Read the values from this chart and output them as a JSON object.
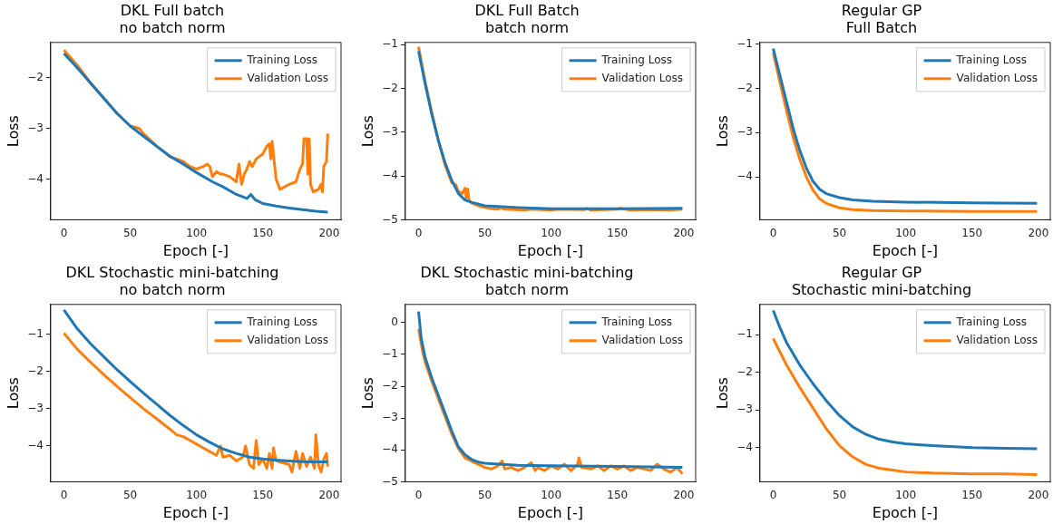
{
  "chart_data": [
    {
      "type": "line",
      "title": "DKL Full batch\nno batch norm",
      "xlabel": "Epoch [-]",
      "ylabel": "Loss",
      "xlim": [
        -10,
        209
      ],
      "ylim": [
        -4.8,
        -1.3
      ],
      "xticks": [
        0,
        50,
        100,
        150,
        200
      ],
      "yticks": [
        -4,
        -3,
        -2
      ],
      "legend": "top right",
      "series": [
        {
          "name": "Training Loss",
          "color": "#1f77b4",
          "x": [
            0,
            10,
            20,
            30,
            40,
            50,
            60,
            70,
            80,
            90,
            100,
            110,
            112,
            120,
            130,
            138,
            141,
            144,
            150,
            160,
            170,
            180,
            190,
            199
          ],
          "values": [
            -1.52,
            -1.8,
            -2.1,
            -2.4,
            -2.7,
            -2.95,
            -3.15,
            -3.35,
            -3.55,
            -3.7,
            -3.87,
            -4.02,
            -4.05,
            -4.15,
            -4.3,
            -4.38,
            -4.3,
            -4.4,
            -4.48,
            -4.53,
            -4.57,
            -4.6,
            -4.63,
            -4.65
          ]
        },
        {
          "name": "Validation Loss",
          "color": "#ff7f0e",
          "x": [
            0,
            10,
            20,
            30,
            40,
            50,
            57,
            60,
            70,
            80,
            85,
            90,
            95,
            100,
            105,
            108,
            110,
            112,
            115,
            118,
            120,
            125,
            130,
            132,
            134,
            136,
            138,
            140,
            142,
            145,
            150,
            153,
            155,
            156,
            157,
            160,
            163,
            170,
            175,
            178,
            180,
            181,
            183,
            184,
            185,
            186,
            188,
            192,
            194,
            195,
            196,
            198,
            199
          ],
          "values": [
            -1.45,
            -1.75,
            -2.1,
            -2.4,
            -2.7,
            -2.95,
            -3.0,
            -3.1,
            -3.35,
            -3.55,
            -3.6,
            -3.65,
            -3.75,
            -3.8,
            -3.75,
            -3.7,
            -3.75,
            -3.95,
            -3.85,
            -3.9,
            -3.9,
            -3.95,
            -4.05,
            -3.7,
            -4.1,
            -3.9,
            -3.8,
            -3.65,
            -3.75,
            -3.6,
            -3.5,
            -3.35,
            -3.3,
            -3.6,
            -3.25,
            -4.0,
            -4.2,
            -4.1,
            -4.05,
            -3.8,
            -3.7,
            -3.2,
            -3.2,
            -3.9,
            -3.2,
            -4.1,
            -4.25,
            -4.2,
            -4.1,
            -4.25,
            -3.75,
            -3.65,
            -3.1
          ]
        }
      ]
    },
    {
      "type": "line",
      "title": "DKL Full Batch\nbatch norm",
      "xlabel": "Epoch [-]",
      "ylabel": "Loss",
      "xlim": [
        -10,
        209
      ],
      "ylim": [
        -5,
        -0.95
      ],
      "xticks": [
        0,
        50,
        100,
        150,
        200
      ],
      "yticks": [
        -5,
        -4,
        -3,
        -2,
        -1
      ],
      "legend": "top right",
      "series": [
        {
          "name": "Training Loss",
          "color": "#1f77b4",
          "x": [
            0,
            5,
            10,
            15,
            20,
            25,
            30,
            35,
            40,
            50,
            75,
            100,
            150,
            199
          ],
          "values": [
            -1.15,
            -1.9,
            -2.6,
            -3.2,
            -3.7,
            -4.1,
            -4.4,
            -4.55,
            -4.6,
            -4.68,
            -4.72,
            -4.75,
            -4.75,
            -4.74
          ]
        },
        {
          "name": "Validation Loss",
          "color": "#ff7f0e",
          "x": [
            0,
            5,
            10,
            15,
            20,
            25,
            28,
            30,
            33,
            35,
            36,
            37,
            38,
            40,
            45,
            50,
            55,
            60,
            62,
            65,
            80,
            85,
            100,
            105,
            125,
            127,
            130,
            150,
            152,
            160,
            175,
            190,
            199
          ],
          "values": [
            -1.05,
            -1.85,
            -2.55,
            -3.2,
            -3.75,
            -4.15,
            -4.2,
            -4.35,
            -4.4,
            -4.28,
            -4.5,
            -4.3,
            -4.55,
            -4.62,
            -4.68,
            -4.72,
            -4.75,
            -4.76,
            -4.72,
            -4.76,
            -4.78,
            -4.76,
            -4.78,
            -4.76,
            -4.77,
            -4.74,
            -4.78,
            -4.76,
            -4.74,
            -4.78,
            -4.77,
            -4.78,
            -4.76
          ]
        }
      ]
    },
    {
      "type": "line",
      "title": "Regular GP\nFull Batch",
      "xlabel": "Epoch [-]",
      "ylabel": "Loss",
      "xlim": [
        -10,
        209
      ],
      "ylim": [
        -4.97,
        -0.96
      ],
      "xticks": [
        0,
        50,
        100,
        150,
        200
      ],
      "yticks": [
        -4,
        -3,
        -2,
        -1
      ],
      "legend": "top right",
      "series": [
        {
          "name": "Training Loss",
          "color": "#1f77b4",
          "x": [
            0,
            5,
            10,
            15,
            20,
            25,
            30,
            35,
            40,
            50,
            60,
            75,
            100,
            150,
            199
          ],
          "values": [
            -1.1,
            -1.7,
            -2.3,
            -2.9,
            -3.4,
            -3.8,
            -4.1,
            -4.28,
            -4.38,
            -4.47,
            -4.52,
            -4.55,
            -4.57,
            -4.59,
            -4.6
          ]
        },
        {
          "name": "Validation Loss",
          "color": "#ff7f0e",
          "x": [
            0,
            5,
            10,
            15,
            20,
            25,
            30,
            35,
            40,
            50,
            60,
            75,
            100,
            150,
            199
          ],
          "values": [
            -1.2,
            -1.85,
            -2.5,
            -3.1,
            -3.6,
            -4.0,
            -4.3,
            -4.5,
            -4.6,
            -4.7,
            -4.74,
            -4.76,
            -4.77,
            -4.78,
            -4.78
          ]
        }
      ]
    },
    {
      "type": "line",
      "title": "DKL Stochastic mini-batching\nno batch norm",
      "xlabel": "Epoch [-]",
      "ylabel": "Loss",
      "xlim": [
        -10,
        209
      ],
      "ylim": [
        -4.96,
        -0.2
      ],
      "xticks": [
        0,
        50,
        100,
        150,
        200
      ],
      "yticks": [
        -4,
        -3,
        -2,
        -1
      ],
      "legend": "top right",
      "series": [
        {
          "name": "Training Loss",
          "color": "#1f77b4",
          "x": [
            0,
            10,
            20,
            30,
            40,
            50,
            60,
            70,
            80,
            90,
            100,
            110,
            120,
            130,
            140,
            150,
            160,
            170,
            180,
            199
          ],
          "values": [
            -0.35,
            -0.85,
            -1.25,
            -1.6,
            -1.95,
            -2.27,
            -2.58,
            -2.88,
            -3.18,
            -3.45,
            -3.7,
            -3.9,
            -4.08,
            -4.2,
            -4.3,
            -4.35,
            -4.38,
            -4.4,
            -4.42,
            -4.43
          ]
        },
        {
          "name": "Validation Loss",
          "color": "#ff7f0e",
          "x": [
            0,
            10,
            20,
            30,
            40,
            50,
            60,
            70,
            80,
            85,
            90,
            95,
            100,
            105,
            110,
            115,
            118,
            120,
            125,
            130,
            135,
            137,
            140,
            143,
            145,
            147,
            150,
            153,
            155,
            157,
            158,
            160,
            165,
            170,
            172,
            175,
            178,
            180,
            183,
            186,
            189,
            190,
            192,
            194,
            196,
            198,
            199
          ],
          "values": [
            -0.97,
            -1.4,
            -1.75,
            -2.08,
            -2.4,
            -2.7,
            -3.0,
            -3.27,
            -3.55,
            -3.7,
            -3.75,
            -3.85,
            -3.95,
            -4.05,
            -4.15,
            -4.25,
            -4.0,
            -4.3,
            -4.25,
            -4.4,
            -4.3,
            -4.0,
            -4.5,
            -4.6,
            -3.85,
            -4.5,
            -4.35,
            -4.6,
            -4.2,
            -4.6,
            -4.05,
            -4.4,
            -4.45,
            -4.5,
            -4.7,
            -4.15,
            -4.6,
            -4.2,
            -4.55,
            -4.3,
            -4.6,
            -3.7,
            -4.5,
            -4.7,
            -4.35,
            -4.2,
            -4.55
          ]
        }
      ]
    },
    {
      "type": "line",
      "title": "DKL Stochastic mini-batching\nbatch norm",
      "xlabel": "Epoch [-]",
      "ylabel": "Loss",
      "xlim": [
        -10,
        209
      ],
      "ylim": [
        -5,
        0.57
      ],
      "xticks": [
        0,
        50,
        100,
        150,
        200
      ],
      "yticks": [
        -5,
        -4,
        -3,
        -2,
        -1,
        0
      ],
      "legend": "top right",
      "series": [
        {
          "name": "Training Loss",
          "color": "#1f77b4",
          "x": [
            0,
            2,
            5,
            10,
            15,
            20,
            25,
            30,
            35,
            40,
            45,
            50,
            75,
            100,
            150,
            199
          ],
          "values": [
            0.35,
            -0.5,
            -1.1,
            -1.75,
            -2.3,
            -2.85,
            -3.4,
            -3.9,
            -4.15,
            -4.3,
            -4.38,
            -4.42,
            -4.48,
            -4.5,
            -4.52,
            -4.55
          ]
        },
        {
          "name": "Validation Loss",
          "color": "#ff7f0e",
          "x": [
            0,
            3,
            5,
            10,
            15,
            20,
            25,
            30,
            35,
            40,
            45,
            50,
            55,
            60,
            63,
            65,
            70,
            75,
            80,
            85,
            88,
            90,
            95,
            100,
            105,
            110,
            115,
            120,
            121,
            123,
            130,
            135,
            140,
            145,
            150,
            155,
            160,
            165,
            170,
            175,
            180,
            185,
            190,
            195,
            199
          ],
          "values": [
            -0.2,
            -0.9,
            -1.25,
            -1.85,
            -2.4,
            -2.95,
            -3.5,
            -3.95,
            -4.25,
            -4.35,
            -4.45,
            -4.55,
            -4.6,
            -4.5,
            -4.35,
            -4.6,
            -4.55,
            -4.65,
            -4.55,
            -4.4,
            -4.65,
            -4.55,
            -4.65,
            -4.5,
            -4.6,
            -4.45,
            -4.65,
            -4.45,
            -4.25,
            -4.55,
            -4.6,
            -4.5,
            -4.65,
            -4.5,
            -4.6,
            -4.5,
            -4.65,
            -4.55,
            -4.6,
            -4.65,
            -4.45,
            -4.6,
            -4.7,
            -4.55,
            -4.75
          ]
        }
      ]
    },
    {
      "type": "line",
      "title": "Regular GP\nStochastic mini-batching",
      "xlabel": "Epoch [-]",
      "ylabel": "Loss",
      "xlim": [
        -10,
        209
      ],
      "ylim": [
        -4.91,
        -0.19
      ],
      "xticks": [
        0,
        50,
        100,
        150,
        200
      ],
      "yticks": [
        -4,
        -3,
        -2,
        -1
      ],
      "legend": "top right",
      "series": [
        {
          "name": "Training Loss",
          "color": "#1f77b4",
          "x": [
            0,
            5,
            10,
            20,
            30,
            40,
            50,
            60,
            70,
            80,
            90,
            100,
            120,
            150,
            175,
            199
          ],
          "values": [
            -0.35,
            -0.8,
            -1.2,
            -1.8,
            -2.3,
            -2.75,
            -3.15,
            -3.45,
            -3.65,
            -3.78,
            -3.85,
            -3.9,
            -3.95,
            -4.0,
            -4.02,
            -4.03
          ]
        },
        {
          "name": "Validation Loss",
          "color": "#ff7f0e",
          "x": [
            0,
            5,
            10,
            20,
            30,
            40,
            50,
            60,
            70,
            80,
            90,
            100,
            120,
            150,
            175,
            199
          ],
          "values": [
            -1.1,
            -1.45,
            -1.8,
            -2.4,
            -2.95,
            -3.5,
            -3.95,
            -4.25,
            -4.45,
            -4.55,
            -4.6,
            -4.65,
            -4.68,
            -4.7,
            -4.7,
            -4.72
          ]
        }
      ]
    }
  ]
}
